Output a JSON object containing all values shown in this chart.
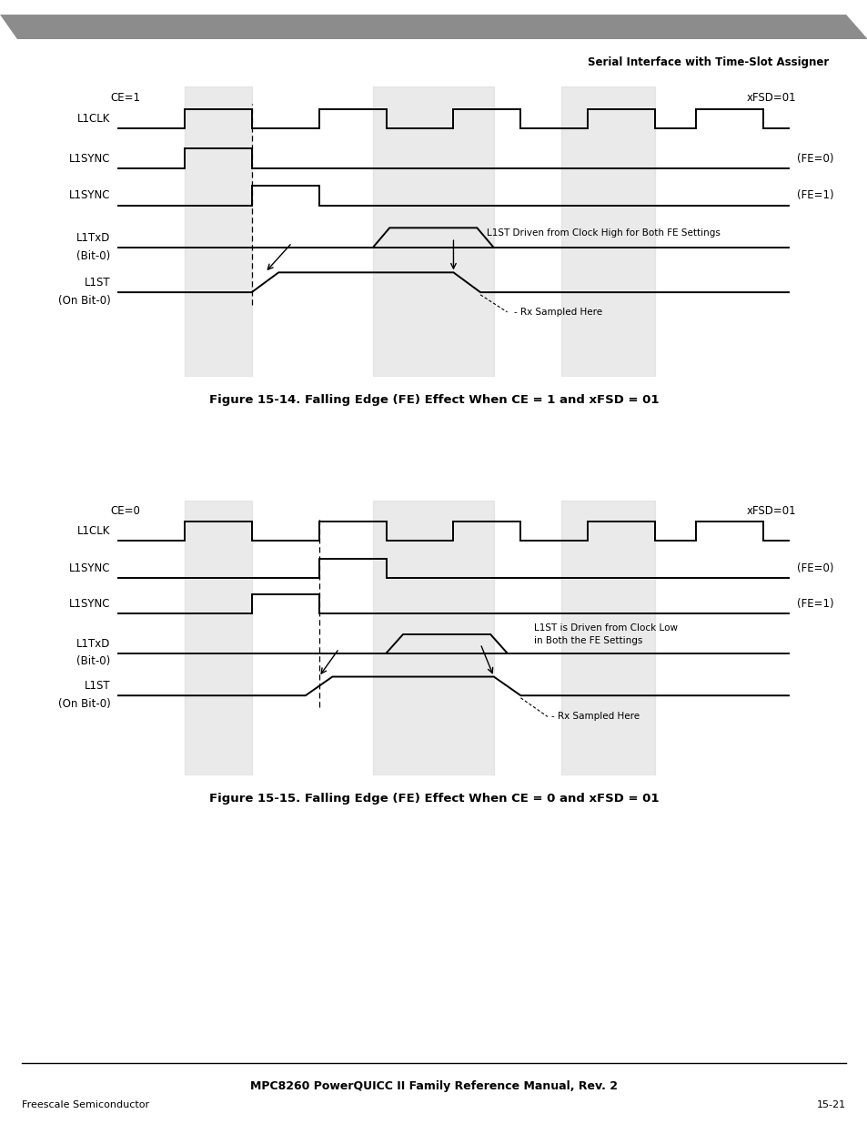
{
  "page_header": "Serial Interface with Time-Slot Assigner",
  "fig1_title": "Figure 15-14. Falling Edge (FE) Effect When CE = 1 and xFSD = 01",
  "fig2_title": "Figure 15-15. Falling Edge (FE) Effect When CE = 0 and xFSD = 01",
  "footer_center": "MPC8260 PowerQUICC II Family Reference Manual, Rev. 2",
  "footer_left": "Freescale Semiconductor",
  "footer_right": "15-21",
  "header_bar_color": "#909090",
  "bg_shade_color": "#cccccc",
  "bg_shade_alpha": 0.4
}
